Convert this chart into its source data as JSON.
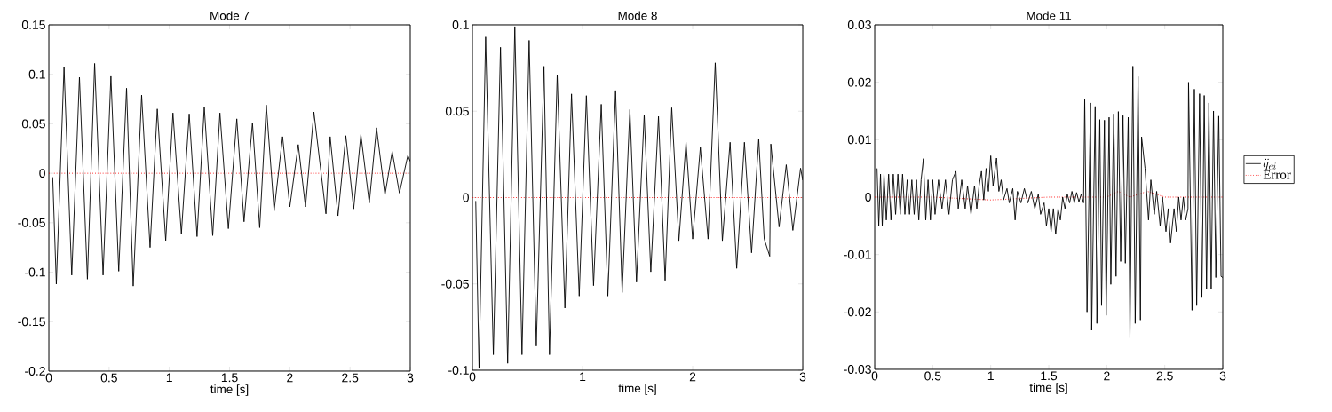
{
  "chart_data": [
    {
      "type": "line",
      "title": "Mode 7",
      "xlabel": "time [s]",
      "xlim": [
        0,
        3
      ],
      "ylim": [
        -0.2,
        0.15
      ],
      "xticks": [
        0,
        0.5,
        1,
        1.5,
        2,
        2.5,
        3
      ],
      "yticks": [
        -0.2,
        -0.15,
        -0.1,
        -0.05,
        0,
        0.05,
        0.1,
        0.15
      ],
      "grid": false,
      "series": [
        {
          "color": "#000000",
          "line_style": "solid",
          "x": [
            0.032,
            0.062,
            0.126,
            0.19,
            0.254,
            0.32,
            0.38,
            0.45,
            0.515,
            0.58,
            0.645,
            0.7,
            0.77,
            0.84,
            0.9,
            0.97,
            1.03,
            1.1,
            1.165,
            1.23,
            1.29,
            1.36,
            1.42,
            1.49,
            1.56,
            1.62,
            1.69,
            1.75,
            1.805,
            1.87,
            1.94,
            2.0,
            2.07,
            2.13,
            2.2,
            2.3,
            2.335,
            2.4,
            2.465,
            2.53,
            2.59,
            2.66,
            2.72,
            2.79,
            2.85,
            2.91,
            2.98,
            3.0
          ],
          "values": [
            -0.004,
            -0.112,
            0.107,
            -0.103,
            0.097,
            -0.107,
            0.111,
            -0.103,
            0.098,
            -0.099,
            0.086,
            -0.114,
            0.079,
            -0.075,
            0.065,
            -0.068,
            0.061,
            -0.061,
            0.06,
            -0.064,
            0.067,
            -0.063,
            0.061,
            -0.056,
            0.055,
            -0.049,
            0.051,
            -0.055,
            0.069,
            -0.038,
            0.037,
            -0.034,
            0.029,
            -0.034,
            0.062,
            -0.041,
            0.037,
            -0.043,
            0.038,
            -0.036,
            0.039,
            -0.03,
            0.046,
            -0.022,
            0.022,
            -0.02,
            0.018,
            0.012
          ]
        },
        {
          "color": "#ff0000",
          "line_style": "dotted",
          "x": [
            0,
            0.5,
            1,
            1.5,
            2,
            2.5,
            3
          ],
          "values": [
            0,
            0,
            0,
            0,
            0,
            0,
            0
          ]
        }
      ]
    },
    {
      "type": "line",
      "title": "Mode 8",
      "xlabel": "time [s]",
      "xlim": [
        0,
        3
      ],
      "ylim": [
        -0.1,
        0.1
      ],
      "xticks": [
        0,
        1,
        2,
        3
      ],
      "yticks": [
        -0.1,
        -0.05,
        0,
        0.05,
        0.1
      ],
      "grid": false,
      "series": [
        {
          "color": "#000000",
          "line_style": "solid",
          "x": [
            0.03,
            0.06,
            0.12,
            0.19,
            0.255,
            0.32,
            0.385,
            0.45,
            0.515,
            0.58,
            0.65,
            0.7,
            0.77,
            0.84,
            0.9,
            0.97,
            1.035,
            1.1,
            1.17,
            1.23,
            1.3,
            1.36,
            1.43,
            1.49,
            1.56,
            1.62,
            1.69,
            1.75,
            1.81,
            1.875,
            1.94,
            2.0,
            2.07,
            2.14,
            2.205,
            2.27,
            2.34,
            2.4,
            2.47,
            2.535,
            2.6,
            2.65,
            2.7,
            2.71,
            2.785,
            2.85,
            2.91,
            2.98,
            3.0
          ],
          "values": [
            -0.002,
            -0.099,
            0.093,
            -0.091,
            0.087,
            -0.096,
            0.099,
            -0.091,
            0.091,
            -0.086,
            0.076,
            -0.091,
            0.071,
            -0.064,
            0.06,
            -0.057,
            0.059,
            -0.051,
            0.054,
            -0.057,
            0.062,
            -0.055,
            0.051,
            -0.049,
            0.048,
            -0.043,
            0.047,
            -0.048,
            0.052,
            -0.025,
            0.032,
            -0.024,
            0.029,
            -0.024,
            0.078,
            -0.025,
            0.032,
            -0.041,
            0.032,
            -0.032,
            0.034,
            -0.024,
            -0.034,
            0.031,
            -0.017,
            0.019,
            -0.019,
            0.017,
            0.01
          ]
        },
        {
          "color": "#ff0000",
          "line_style": "dotted",
          "x": [
            0,
            0.5,
            1,
            1.5,
            2,
            2.5,
            3
          ],
          "values": [
            0,
            0,
            0,
            0,
            0,
            0,
            0
          ]
        }
      ]
    },
    {
      "type": "line",
      "title": "Mode 11",
      "xlabel": "time [s]",
      "xlim": [
        0,
        3
      ],
      "ylim": [
        -0.03,
        0.03
      ],
      "xticks": [
        0,
        0.5,
        1,
        1.5,
        2,
        2.5,
        3
      ],
      "yticks": [
        -0.03,
        -0.02,
        -0.01,
        0,
        0.01,
        0.02,
        0.03
      ],
      "grid": false,
      "legend": "right",
      "series": [
        {
          "name": "\\ddot{q}_{ei}",
          "color": "#000000",
          "line_style": "solid",
          "x": [
            0.02,
            0.035,
            0.05,
            0.065,
            0.08,
            0.1,
            0.12,
            0.14,
            0.16,
            0.18,
            0.2,
            0.22,
            0.24,
            0.26,
            0.28,
            0.3,
            0.32,
            0.34,
            0.36,
            0.38,
            0.4,
            0.42,
            0.44,
            0.46,
            0.48,
            0.5,
            0.52,
            0.55,
            0.58,
            0.61,
            0.64,
            0.67,
            0.7,
            0.72,
            0.75,
            0.78,
            0.8,
            0.83,
            0.86,
            0.88,
            0.9,
            0.92,
            0.94,
            0.96,
            0.98,
            1.0,
            1.02,
            1.05,
            1.07,
            1.09,
            1.11,
            1.14,
            1.16,
            1.19,
            1.21,
            1.23,
            1.26,
            1.29,
            1.32,
            1.35,
            1.38,
            1.41,
            1.43,
            1.46,
            1.48,
            1.5,
            1.52,
            1.54,
            1.56,
            1.58,
            1.6,
            1.62,
            1.64,
            1.66,
            1.68,
            1.7,
            1.72,
            1.74,
            1.76,
            1.78,
            1.8,
            1.81,
            1.83,
            1.86,
            1.87,
            1.9,
            1.915,
            1.94,
            1.955,
            1.98,
            1.995,
            2.02,
            2.035,
            2.06,
            2.08,
            2.1,
            2.12,
            2.14,
            2.16,
            2.185,
            2.2,
            2.225,
            2.245,
            2.27,
            2.29,
            2.3,
            2.33,
            2.36,
            2.38,
            2.41,
            2.43,
            2.46,
            2.48,
            2.51,
            2.53,
            2.55,
            2.58,
            2.6,
            2.62,
            2.64,
            2.66,
            2.68,
            2.7,
            2.705,
            2.735,
            2.755,
            2.775,
            2.8,
            2.82,
            2.84,
            2.86,
            2.88,
            2.9,
            2.92,
            2.94,
            2.965,
            2.985,
            3.0
          ],
          "values": [
            0.005,
            -0.005,
            0.004,
            -0.005,
            0.004,
            -0.004,
            0.004,
            -0.004,
            0.004,
            -0.003,
            0.004,
            -0.003,
            0.004,
            -0.003,
            0.003,
            -0.003,
            0.003,
            -0.003,
            0.003,
            -0.004,
            0.003,
            0.0067,
            -0.004,
            0.003,
            -0.004,
            0.003,
            -0.003,
            0.003,
            -0.002,
            0.003,
            -0.003,
            0.003,
            0.0045,
            -0.002,
            0.003,
            -0.002,
            0.002,
            -0.003,
            0.002,
            -0.002,
            0.002,
            0.0045,
            -0.0005,
            0.005,
            0.001,
            0.0072,
            0.002,
            0.0068,
            0.001,
            0.003,
            -0.0005,
            0.0015,
            -0.001,
            0.0015,
            -0.004,
            0.001,
            -0.001,
            0.0015,
            -0.001,
            0.001,
            -0.002,
            0.0005,
            -0.003,
            -0.001,
            -0.005,
            -0.002,
            -0.006,
            -0.002,
            -0.0065,
            -0.002,
            -0.004,
            0.0,
            -0.002,
            0.0005,
            -0.001,
            0.001,
            -0.001,
            0.0008,
            -0.0008,
            0.0005,
            -0.001,
            0.017,
            -0.02,
            0.0164,
            -0.0232,
            0.0158,
            -0.022,
            0.0135,
            -0.0189,
            0.0134,
            -0.0206,
            0.0139,
            -0.0152,
            0.0145,
            -0.0138,
            0.0149,
            -0.0112,
            0.0142,
            -0.0115,
            0.0139,
            -0.0245,
            0.0228,
            -0.022,
            0.021,
            -0.0214,
            0.0105,
            0.005,
            -0.004,
            0.003,
            -0.003,
            0.001,
            -0.005,
            0.0,
            -0.006,
            -0.002,
            -0.008,
            -0.002,
            -0.006,
            0.0,
            -0.004,
            0.0,
            -0.004,
            -0.002,
            0.02,
            -0.0197,
            0.0188,
            -0.0189,
            0.018,
            -0.0175,
            0.0177,
            -0.016,
            0.0164,
            -0.016,
            0.015,
            -0.014,
            0.0141,
            -0.0138,
            -0.014
          ]
        },
        {
          "name": "Error",
          "color": "#ff0000",
          "line_style": "dotted",
          "x": [
            0,
            0.5,
            1,
            1.5,
            2,
            2.1,
            2.2,
            2.35,
            2.5,
            3
          ],
          "values": [
            0,
            0,
            -0.0005,
            0,
            0,
            0.001,
            0,
            0.001,
            0,
            0
          ]
        }
      ]
    }
  ]
}
